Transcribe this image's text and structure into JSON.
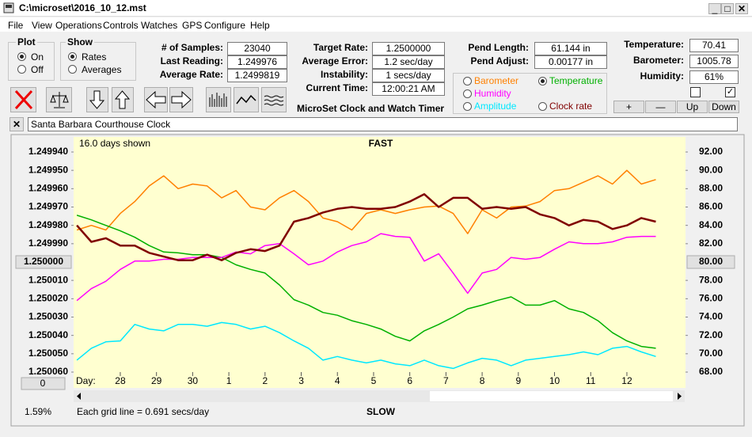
{
  "window": {
    "title": "C:\\microset\\2016_10_12.mst"
  },
  "menu": [
    "File",
    "View",
    "Operations",
    "Controls",
    "Watches",
    "GPS",
    "Configure",
    "Help"
  ],
  "plot_group": {
    "title": "Plot",
    "options": [
      "On",
      "Off"
    ],
    "selected": 0
  },
  "show_group": {
    "title": "Show",
    "options": [
      "Rates",
      "Averages"
    ],
    "selected": 0
  },
  "stats_left": [
    {
      "label": "# of Samples:",
      "value": "23040"
    },
    {
      "label": "Last Reading:",
      "value": "1.249976"
    },
    {
      "label": "Average Rate:",
      "value": "1.2499819"
    }
  ],
  "stats_mid": [
    {
      "label": "Target Rate:",
      "value": "1.2500000"
    },
    {
      "label": "Average Error:",
      "value": "1.2 sec/day"
    },
    {
      "label": "Instability:",
      "value": "1 secs/day"
    },
    {
      "label": "Current Time:",
      "value": "12:00:21 AM"
    }
  ],
  "stats_pend": [
    {
      "label": "Pend Length:",
      "value": "61.144 in"
    },
    {
      "label": "Pend Adjust:",
      "value": "0.00177 in"
    }
  ],
  "sensors": [
    {
      "label": "Temperature:",
      "value": "70.41"
    },
    {
      "label": "Barometer:",
      "value": "1005.78"
    },
    {
      "label": "Humidity:",
      "value": "61%"
    }
  ],
  "checkboxes": [
    false,
    true
  ],
  "sensor_buttons": [
    "+",
    "—",
    "Up",
    "Down"
  ],
  "app_name": "MicroSet Clock and Watch Timer",
  "clock_name": "Santa Barbara Courthouse Clock",
  "offset_button": "0",
  "percent": "1.59%",
  "chart_data": {
    "type": "line",
    "top_label": "FAST",
    "bottom_label": "SLOW",
    "days_shown": "16.0 days shown",
    "x_label": "Day:",
    "grid_note": "Each grid line = 0.691 secs/day",
    "grid": false,
    "selected_series": 1,
    "xlim": [
      -1.29,
      15.62
    ],
    "xticks": [
      {
        "value": 0,
        "label": "28"
      },
      {
        "value": 1,
        "label": "29"
      },
      {
        "value": 2,
        "label": "30"
      },
      {
        "value": 3,
        "label": "1"
      },
      {
        "value": 4,
        "label": "2"
      },
      {
        "value": 5,
        "label": "3"
      },
      {
        "value": 6,
        "label": "4"
      },
      {
        "value": 7,
        "label": "5"
      },
      {
        "value": 8,
        "label": "6"
      },
      {
        "value": 9,
        "label": "7"
      },
      {
        "value": 10,
        "label": "8"
      },
      {
        "value": 11,
        "label": "9"
      },
      {
        "value": 12,
        "label": "10"
      },
      {
        "value": 13,
        "label": "11"
      },
      {
        "value": 14,
        "label": "12"
      }
    ],
    "ylim": [
      1.25006,
      1.24994
    ],
    "yticks": [
      {
        "value": 1.24994,
        "label": "1.249940"
      },
      {
        "value": 1.24995,
        "label": "1.249950"
      },
      {
        "value": 1.24996,
        "label": "1.249960"
      },
      {
        "value": 1.24997,
        "label": "1.249970"
      },
      {
        "value": 1.24998,
        "label": "1.249980"
      },
      {
        "value": 1.24999,
        "label": "1.249990"
      },
      {
        "value": 1.25,
        "label": "1.250000"
      },
      {
        "value": 1.25001,
        "label": "1.250010"
      },
      {
        "value": 1.25002,
        "label": "1.250020"
      },
      {
        "value": 1.25003,
        "label": "1.250030"
      },
      {
        "value": 1.25004,
        "label": "1.250040"
      },
      {
        "value": 1.25005,
        "label": "1.250050"
      },
      {
        "value": 1.25006,
        "label": "1.250060"
      }
    ],
    "y2lim": [
      68,
      92
    ],
    "y2ticks": [
      {
        "value": 92,
        "label": "92.00"
      },
      {
        "value": 90,
        "label": "90.00"
      },
      {
        "value": 88,
        "label": "88.00"
      },
      {
        "value": 86,
        "label": "86.00"
      },
      {
        "value": 84,
        "label": "84.00"
      },
      {
        "value": 82,
        "label": "82.00"
      },
      {
        "value": 80,
        "label": "80.00"
      },
      {
        "value": 78,
        "label": "78.00"
      },
      {
        "value": 76,
        "label": "76.00"
      },
      {
        "value": 74,
        "label": "74.00"
      },
      {
        "value": 72,
        "label": "72.00"
      },
      {
        "value": 70,
        "label": "70.00"
      },
      {
        "value": 68,
        "label": "68.00"
      }
    ],
    "x": [
      -1.2,
      -0.8,
      -0.4,
      0,
      0.4,
      0.8,
      1.2,
      1.6,
      2,
      2.4,
      2.8,
      3.2,
      3.6,
      4,
      4.4,
      4.8,
      5.2,
      5.6,
      6,
      6.4,
      6.8,
      7.2,
      7.6,
      8,
      8.4,
      8.8,
      9.2,
      9.6,
      10,
      10.4,
      10.8,
      11.2,
      11.6,
      12,
      12.4,
      12.8,
      13.2,
      13.6,
      14,
      14.4,
      14.8
    ],
    "series": [
      {
        "name": "Barometer",
        "color": "#ff8000",
        "axis": "y2",
        "values": [
          83.5,
          84,
          83.5,
          85.3,
          86.6,
          88.3,
          89.4,
          88,
          88.5,
          88.3,
          87,
          87.8,
          86,
          85.7,
          87,
          87.8,
          86.6,
          84.8,
          84.4,
          83.5,
          85.3,
          85.7,
          85.3,
          85.7,
          86,
          86.1,
          85.3,
          83.1,
          85.7,
          84.8,
          86,
          86.1,
          86.6,
          87.8,
          88,
          88.7,
          89.4,
          88.5,
          90,
          88.5,
          89
        ]
      },
      {
        "name": "Temperature",
        "color": "#00b000",
        "axis": "y2",
        "values": [
          85.1,
          84.6,
          84,
          83.4,
          82.7,
          81.8,
          81.1,
          81,
          80.8,
          80.8,
          80.5,
          79.7,
          79.2,
          78.8,
          77.5,
          75.9,
          75.3,
          74.5,
          74.2,
          73.6,
          73.2,
          72.7,
          71.9,
          71.4,
          72.5,
          73.2,
          74,
          74.9,
          75.3,
          75.8,
          76.2,
          75.3,
          75.3,
          75.8,
          74.9,
          74.5,
          73.6,
          72.3,
          71.4,
          70.8,
          70.6
        ]
      },
      {
        "name": "Humidity",
        "color": "#ff00ff",
        "axis": "y2",
        "values": [
          75.8,
          77.1,
          77.9,
          79.2,
          80.1,
          80.1,
          80.3,
          80.3,
          80.5,
          80.5,
          80.5,
          81.1,
          80.9,
          81.8,
          82,
          80.9,
          79.7,
          80.1,
          81.1,
          81.8,
          82.2,
          83.1,
          82.8,
          82.7,
          80.1,
          80.9,
          78.8,
          76.6,
          78.8,
          79.2,
          80.5,
          80.3,
          80.5,
          81.4,
          82.2,
          82,
          82,
          82.2,
          82.7,
          82.8,
          82.8
        ]
      },
      {
        "name": "Amplitude",
        "color": "#00e8ff",
        "axis": "y2",
        "values": [
          69.3,
          70.6,
          71.3,
          71.4,
          73.2,
          72.7,
          72.5,
          73.2,
          73.2,
          73,
          73.4,
          73.2,
          72.7,
          73,
          72.3,
          71.4,
          70.6,
          69.3,
          69.7,
          69.3,
          69,
          69.3,
          68.9,
          68.7,
          69.3,
          68.7,
          68.4,
          69,
          69.5,
          69.3,
          68.7,
          69.3,
          69.5,
          69.7,
          69.9,
          70.2,
          69.9,
          70.6,
          70.8,
          70.2,
          69.7
        ]
      },
      {
        "name": "Clock rate",
        "color": "#800000",
        "axis": "y",
        "values": [
          1.24998,
          1.249989,
          1.249987,
          1.249991,
          1.249991,
          1.249995,
          1.249997,
          1.249999,
          1.249999,
          1.249996,
          1.249999,
          1.249995,
          1.249993,
          1.249994,
          1.249991,
          1.249978,
          1.249976,
          1.249973,
          1.249971,
          1.24997,
          1.249971,
          1.249971,
          1.24997,
          1.249967,
          1.249963,
          1.24997,
          1.249965,
          1.249965,
          1.249971,
          1.24997,
          1.249971,
          1.24997,
          1.249974,
          1.249976,
          1.24998,
          1.249977,
          1.249978,
          1.249982,
          1.24998,
          1.249976,
          1.249978
        ]
      }
    ]
  }
}
